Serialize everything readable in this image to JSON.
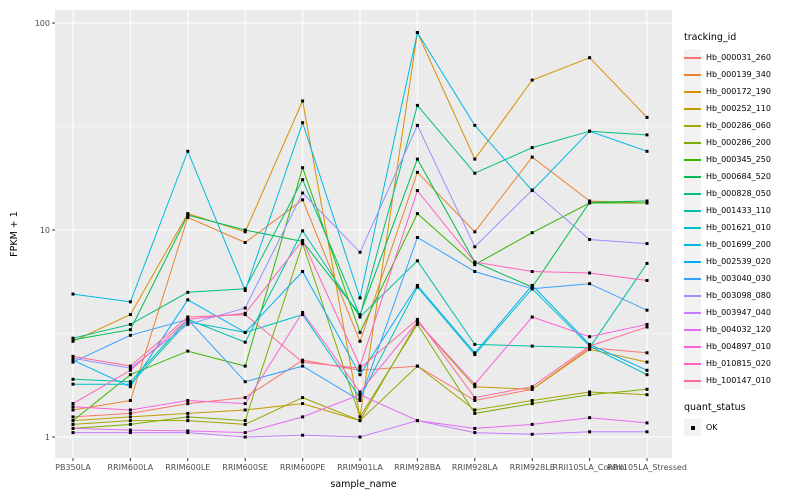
{
  "figure": {
    "y_axis_title": "FPKM + 1",
    "x_axis_title": "sample_name",
    "legend": {
      "tracking_title": "tracking_id",
      "quant_title": "quant_status",
      "quant_ok_label": "OK"
    },
    "colors": {
      "panel_bg": "#EBEBEB",
      "grid": "#FFFFFF",
      "legend_key_bg": "#F2F2F2",
      "tick_text": "#4D4D4D",
      "tick_mark": "#333333",
      "point": "#000000"
    }
  },
  "chart_data": {
    "type": "line",
    "title": "",
    "xlabel": "sample_name",
    "ylabel": "FPKM + 1",
    "y_scale": "log10",
    "y_ticks": [
      1,
      10,
      100
    ],
    "y_minor": [
      3.162,
      31.62
    ],
    "ylim": [
      0.79,
      116
    ],
    "grid": true,
    "legend_position": "right",
    "marker": "small black square (quant_status = OK)",
    "categories": [
      "PB350LA",
      "RRIM600LA",
      "RRIM600LE",
      "RRIM600SE",
      "RRIM600PE",
      "RRIM901LA",
      "RRIM928BA",
      "RRIM928LA",
      "RRIM928LE",
      "RRII105LA_Control",
      "RRII105LA_Stressed"
    ],
    "series": [
      {
        "name": "Hb_000031_260",
        "color": "#F8766D",
        "values": [
          1.25,
          1.3,
          1.45,
          1.55,
          2.35,
          2.1,
          2.2,
          1.5,
          1.7,
          2.7,
          2.55
        ]
      },
      {
        "name": "Hb_000139_340",
        "color": "#EA8331",
        "values": [
          1.35,
          1.5,
          11.5,
          8.7,
          14,
          2.9,
          19,
          9.8,
          22.5,
          13.8,
          13.5
        ]
      },
      {
        "name": "Hb_000172_190",
        "color": "#D89000",
        "values": [
          2.9,
          3.9,
          12,
          9.8,
          42,
          1.25,
          90,
          22,
          53,
          68,
          35
        ]
      },
      {
        "name": "Hb_000252_110",
        "color": "#C09B00",
        "values": [
          1.2,
          1.25,
          1.3,
          1.35,
          1.45,
          1.2,
          3.6,
          1.75,
          1.7,
          2.65,
          2.3
        ]
      },
      {
        "name": "Hb_000286_060",
        "color": "#A3A500",
        "values": [
          1.15,
          1.2,
          1.2,
          1.15,
          1.55,
          1.2,
          2.2,
          1.35,
          1.5,
          1.65,
          1.6
        ]
      },
      {
        "name": "Hb_000286_200",
        "color": "#7CAE00",
        "values": [
          1.1,
          1.15,
          1.25,
          1.2,
          8.6,
          1.25,
          3.5,
          1.3,
          1.45,
          1.6,
          1.7
        ]
      },
      {
        "name": "Hb_000345_250",
        "color": "#39B600",
        "values": [
          1.2,
          2.0,
          2.6,
          2.2,
          20,
          3.2,
          12,
          6.8,
          9.7,
          13.5,
          13.5
        ]
      },
      {
        "name": "Hb_000684_520",
        "color": "#00BB4E",
        "values": [
          2.95,
          3.3,
          11.8,
          10,
          8.8,
          3.9,
          22,
          7.0,
          5.3,
          13.6,
          13.8
        ]
      },
      {
        "name": "Hb_000828_050",
        "color": "#00BF7D",
        "values": [
          3.0,
          3.5,
          5.0,
          5.2,
          17.5,
          3.85,
          40,
          18.8,
          25,
          30,
          28.8
        ]
      },
      {
        "name": "Hb_001433_110",
        "color": "#00C1A3",
        "values": [
          1.9,
          1.85,
          3.7,
          2.87,
          9.9,
          3.8,
          7.1,
          2.8,
          2.75,
          2.7,
          6.9
        ]
      },
      {
        "name": "Hb_001621_010",
        "color": "#00BFC4",
        "values": [
          1.8,
          1.8,
          3.6,
          3.2,
          3.9,
          1.55,
          5.3,
          2.5,
          5.2,
          2.75,
          2.0
        ]
      },
      {
        "name": "Hb_001699_200",
        "color": "#00BAE0",
        "values": [
          4.9,
          4.5,
          24,
          5.1,
          33,
          4.7,
          90,
          32,
          15.5,
          30,
          24
        ]
      },
      {
        "name": "Hb_002539_020",
        "color": "#00B0F6",
        "values": [
          2.35,
          1.75,
          4.6,
          3.2,
          6.3,
          2.0,
          5.4,
          2.55,
          5.4,
          2.8,
          2.1
        ]
      },
      {
        "name": "Hb_003040_030",
        "color": "#35A2FF",
        "values": [
          2.3,
          3.1,
          3.7,
          1.85,
          2.2,
          1.5,
          9.2,
          6.3,
          5.2,
          5.5,
          4.1
        ]
      },
      {
        "name": "Hb_003098_080",
        "color": "#9590FF",
        "values": [
          2.4,
          2.15,
          3.5,
          4.2,
          15.1,
          7.8,
          32,
          8.3,
          15.6,
          9.0,
          8.6
        ]
      },
      {
        "name": "Hb_003947_040",
        "color": "#C77CFF",
        "values": [
          1.05,
          1.05,
          1.05,
          1.0,
          1.02,
          1.0,
          1.2,
          1.05,
          1.03,
          1.06,
          1.06
        ]
      },
      {
        "name": "Hb_004032_120",
        "color": "#E76BF3",
        "values": [
          1.1,
          1.08,
          1.07,
          1.05,
          1.25,
          1.6,
          1.2,
          1.1,
          1.15,
          1.24,
          1.17
        ]
      },
      {
        "name": "Hb_004897_010",
        "color": "#FA62DB",
        "values": [
          1.4,
          1.35,
          1.5,
          1.45,
          4.0,
          1.65,
          3.6,
          1.8,
          3.8,
          3.05,
          3.5
        ]
      },
      {
        "name": "Hb_010815_020",
        "color": "#FF62BC",
        "values": [
          1.45,
          2.1,
          3.7,
          3.96,
          8.9,
          2.2,
          15.5,
          7.0,
          6.3,
          6.2,
          5.7
        ]
      },
      {
        "name": "Hb_100147_010",
        "color": "#FF6A98",
        "values": [
          2.45,
          2.2,
          3.8,
          3.9,
          2.3,
          2.15,
          3.7,
          1.55,
          1.75,
          2.75,
          3.4
        ]
      }
    ]
  }
}
